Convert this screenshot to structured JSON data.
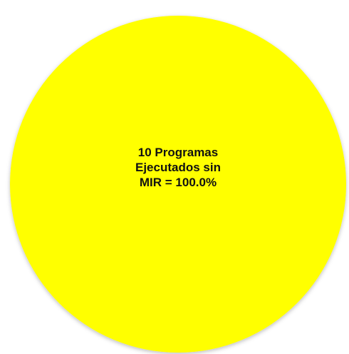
{
  "chart_data": {
    "type": "pie",
    "slices": [
      {
        "label_lines": [
          "10 Programas",
          "Ejecutados sin",
          "MIR = 100.0%"
        ],
        "count": 10,
        "percent": 100.0,
        "color": "#ffff00"
      }
    ]
  }
}
